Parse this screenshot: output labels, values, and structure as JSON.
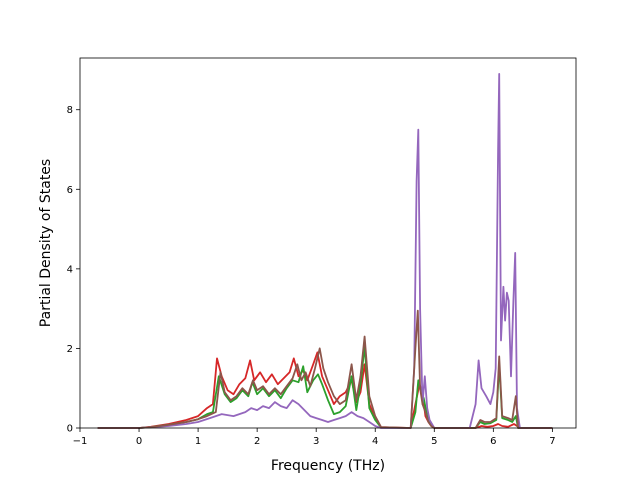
{
  "chart_data": {
    "type": "line",
    "title": "",
    "xlabel": "Frequency (THz)",
    "ylabel": "Partial Density of States",
    "xlim": [
      -1,
      7.4
    ],
    "ylim": [
      0,
      9.3
    ],
    "xticks": [
      -1,
      0,
      1,
      2,
      3,
      4,
      5,
      6,
      7
    ],
    "xtick_labels": [
      "−1",
      "0",
      "1",
      "2",
      "3",
      "4",
      "5",
      "6",
      "7"
    ],
    "yticks": [
      0,
      2,
      4,
      6,
      8
    ],
    "ytick_labels": [
      "0",
      "2",
      "4",
      "6",
      "8"
    ],
    "grid": false,
    "legend": false,
    "series": [
      {
        "color": "#d62728",
        "x": [
          -0.7,
          0,
          0.2,
          0.5,
          0.8,
          1.0,
          1.15,
          1.25,
          1.32,
          1.4,
          1.5,
          1.6,
          1.7,
          1.8,
          1.88,
          1.95,
          2.05,
          2.15,
          2.25,
          2.35,
          2.45,
          2.55,
          2.62,
          2.7,
          2.78,
          2.85,
          2.95,
          3.02,
          3.1,
          3.2,
          3.3,
          3.4,
          3.5,
          3.6,
          3.68,
          3.75,
          3.82,
          3.9,
          4.0,
          4.1,
          4.6,
          4.68,
          4.75,
          4.8,
          4.85,
          4.9,
          4.95,
          5.0,
          5.7,
          5.8,
          5.9,
          6.0,
          6.08,
          6.15,
          6.25,
          6.35,
          6.4,
          6.45,
          7.0
        ],
        "y": [
          0,
          0,
          0.03,
          0.1,
          0.2,
          0.3,
          0.5,
          0.6,
          1.75,
          1.3,
          0.95,
          0.85,
          1.1,
          1.25,
          1.7,
          1.2,
          1.4,
          1.15,
          1.35,
          1.1,
          1.25,
          1.4,
          1.75,
          1.3,
          1.45,
          1.2,
          1.6,
          1.9,
          1.3,
          0.95,
          0.6,
          0.8,
          0.9,
          1.2,
          0.65,
          0.9,
          1.6,
          0.6,
          0.25,
          0.02,
          0,
          0.6,
          1.1,
          0.9,
          0.3,
          0.15,
          0.05,
          0,
          0,
          0.05,
          0.03,
          0.05,
          0.1,
          0.05,
          0.03,
          0.1,
          0.05,
          0,
          0
        ]
      },
      {
        "color": "#2ca02c",
        "x": [
          -0.7,
          0,
          0.2,
          0.5,
          0.8,
          1.0,
          1.15,
          1.25,
          1.35,
          1.45,
          1.55,
          1.65,
          1.75,
          1.85,
          1.92,
          2.0,
          2.1,
          2.2,
          2.3,
          2.4,
          2.5,
          2.6,
          2.7,
          2.78,
          2.85,
          2.95,
          3.03,
          3.1,
          3.2,
          3.3,
          3.4,
          3.5,
          3.6,
          3.68,
          3.75,
          3.82,
          3.9,
          4.0,
          4.1,
          4.6,
          4.68,
          4.73,
          4.78,
          4.82,
          4.88,
          4.95,
          5.0,
          5.7,
          5.78,
          5.85,
          5.95,
          6.05,
          6.1,
          6.15,
          6.25,
          6.32,
          6.38,
          6.42,
          7.0
        ],
        "y": [
          0,
          0,
          0.02,
          0.08,
          0.15,
          0.22,
          0.35,
          0.4,
          1.3,
          0.85,
          0.65,
          0.75,
          0.95,
          0.8,
          1.15,
          0.85,
          1.0,
          0.8,
          0.95,
          0.75,
          1.0,
          1.2,
          1.15,
          1.55,
          0.9,
          1.2,
          1.35,
          1.1,
          0.7,
          0.35,
          0.4,
          0.55,
          1.3,
          0.45,
          1.1,
          2.05,
          0.5,
          0.2,
          0.01,
          0,
          0.4,
          1.2,
          0.9,
          0.75,
          0.3,
          0.1,
          0,
          0,
          0.15,
          0.1,
          0.12,
          0.2,
          1.6,
          0.25,
          0.2,
          0.15,
          0.3,
          0,
          0
        ]
      },
      {
        "color": "#9467bd",
        "x": [
          -0.7,
          0,
          0.2,
          0.5,
          0.8,
          1.0,
          1.2,
          1.4,
          1.6,
          1.8,
          1.9,
          2.0,
          2.1,
          2.2,
          2.3,
          2.4,
          2.5,
          2.6,
          2.7,
          2.8,
          2.9,
          3.0,
          3.1,
          3.2,
          3.3,
          3.4,
          3.5,
          3.6,
          3.7,
          3.8,
          3.9,
          4.0,
          4.1,
          4.6,
          4.66,
          4.7,
          4.73,
          4.76,
          4.8,
          4.84,
          4.88,
          4.92,
          5.0,
          5.6,
          5.7,
          5.75,
          5.8,
          5.88,
          5.95,
          6.0,
          6.04,
          6.08,
          6.1,
          6.13,
          6.17,
          6.2,
          6.23,
          6.26,
          6.3,
          6.34,
          6.37,
          6.4,
          6.45,
          7.0
        ],
        "y": [
          0,
          0,
          0.02,
          0.05,
          0.1,
          0.15,
          0.25,
          0.35,
          0.3,
          0.4,
          0.5,
          0.45,
          0.55,
          0.5,
          0.65,
          0.55,
          0.5,
          0.7,
          0.6,
          0.45,
          0.3,
          0.25,
          0.2,
          0.15,
          0.2,
          0.25,
          0.3,
          0.4,
          0.3,
          0.25,
          0.15,
          0.05,
          0,
          0,
          1.5,
          6.2,
          7.5,
          3.0,
          0.6,
          1.3,
          0.5,
          0.2,
          0,
          0,
          0.6,
          1.7,
          1.0,
          0.8,
          0.6,
          0.9,
          1.5,
          7.0,
          8.9,
          2.2,
          3.55,
          2.7,
          3.4,
          3.2,
          1.3,
          3.2,
          4.4,
          0.5,
          0,
          0
        ]
      },
      {
        "color": "#8c564b",
        "x": [
          -0.7,
          0,
          0.2,
          0.5,
          0.8,
          1.0,
          1.15,
          1.3,
          1.38,
          1.45,
          1.55,
          1.65,
          1.75,
          1.85,
          1.93,
          2.0,
          2.1,
          2.2,
          2.3,
          2.4,
          2.5,
          2.6,
          2.68,
          2.75,
          2.82,
          2.9,
          2.98,
          3.06,
          3.12,
          3.2,
          3.3,
          3.4,
          3.5,
          3.6,
          3.68,
          3.75,
          3.82,
          3.9,
          4.0,
          4.1,
          4.6,
          4.68,
          4.72,
          4.76,
          4.8,
          4.85,
          4.9,
          4.95,
          5.0,
          5.7,
          5.78,
          5.85,
          5.95,
          6.05,
          6.1,
          6.15,
          6.25,
          6.32,
          6.38,
          6.42,
          7.0
        ],
        "y": [
          0,
          0,
          0.02,
          0.08,
          0.15,
          0.22,
          0.3,
          0.4,
          1.4,
          0.9,
          0.7,
          0.8,
          1.0,
          0.85,
          1.2,
          0.95,
          1.05,
          0.85,
          1.0,
          0.85,
          1.05,
          1.25,
          1.6,
          1.2,
          1.4,
          1.05,
          1.5,
          2.0,
          1.5,
          1.15,
          0.8,
          0.6,
          0.7,
          1.6,
          0.7,
          1.3,
          2.3,
          0.8,
          0.3,
          0.02,
          0,
          2.0,
          2.95,
          1.0,
          0.6,
          0.4,
          0.15,
          0.05,
          0,
          0,
          0.2,
          0.15,
          0.15,
          0.25,
          1.8,
          0.3,
          0.25,
          0.2,
          0.8,
          0,
          0
        ]
      }
    ]
  }
}
